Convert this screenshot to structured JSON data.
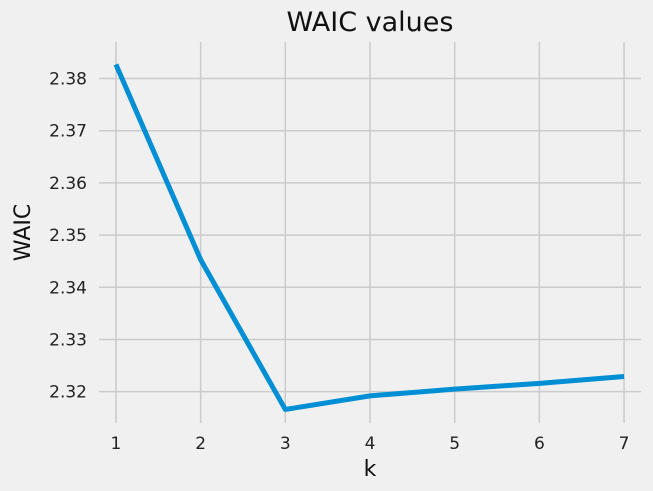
{
  "chart_data": {
    "type": "line",
    "title": "WAIC values",
    "xlabel": "k",
    "ylabel": "WAIC",
    "x": [
      1,
      2,
      3,
      4,
      5,
      6,
      7
    ],
    "series": [
      {
        "values": [
          2.3827,
          2.3453,
          2.3166,
          2.3192,
          2.3205,
          2.3216,
          2.3229
        ],
        "color": "#008fd5"
      }
    ],
    "xlim": [
      0.8,
      7.2
    ],
    "ylim": [
      2.314,
      2.387
    ],
    "xticks": [
      1,
      2,
      3,
      4,
      5,
      6,
      7
    ],
    "yticks": [
      2.32,
      2.33,
      2.34,
      2.35,
      2.36,
      2.37,
      2.38
    ],
    "ytick_labels": [
      "2.32",
      "2.33",
      "2.34",
      "2.35",
      "2.36",
      "2.37",
      "2.38"
    ],
    "grid": true,
    "background": "#f0f0f0",
    "grid_color": "#cbcbcb"
  }
}
